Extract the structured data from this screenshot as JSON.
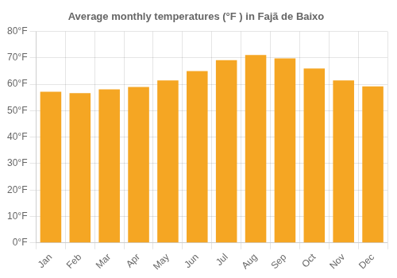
{
  "chart_data": {
    "type": "bar",
    "title": "Average monthly temperatures (°F ) in Fajã de Baixo",
    "categories": [
      "Jan",
      "Feb",
      "Mar",
      "Apr",
      "May",
      "Jun",
      "Jul",
      "Aug",
      "Sep",
      "Oct",
      "Nov",
      "Dec"
    ],
    "values": [
      57.2,
      56.7,
      58.1,
      59.0,
      61.5,
      65.0,
      69.1,
      71.1,
      69.8,
      66.0,
      61.5,
      59.2
    ],
    "color": "#F5A623",
    "ylim": [
      0,
      80
    ],
    "yticks": [
      {
        "value": 0,
        "label": "0°F"
      },
      {
        "value": 10,
        "label": "10°F"
      },
      {
        "value": 20,
        "label": "20°F"
      },
      {
        "value": 30,
        "label": "30°F"
      },
      {
        "value": 40,
        "label": "40°F"
      },
      {
        "value": 50,
        "label": "50°F"
      },
      {
        "value": 60,
        "label": "60°F"
      },
      {
        "value": 70,
        "label": "70°F"
      },
      {
        "value": 80,
        "label": "80°F"
      }
    ],
    "grid": true
  }
}
